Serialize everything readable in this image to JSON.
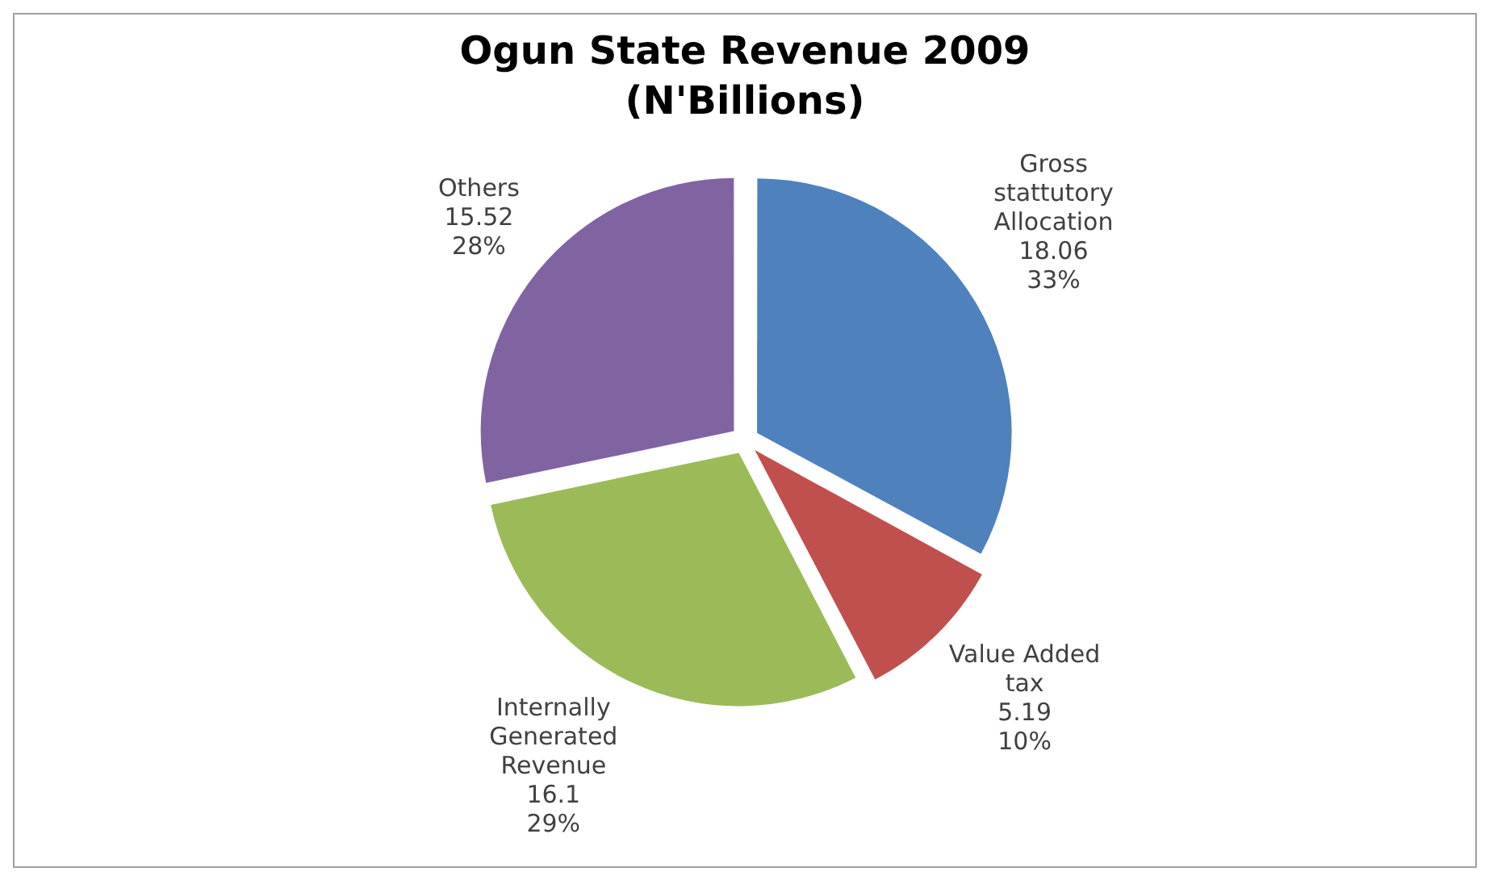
{
  "chart_data": {
    "type": "pie",
    "title": "Ogun State Revenue 2009",
    "subtitle": "(N'Billions)",
    "categories": [
      "Gross stattutory Allocation",
      "Value Added tax",
      "Internally Generated Revenue",
      "Others"
    ],
    "values": [
      18.06,
      5.19,
      16.1,
      15.52
    ],
    "colors": [
      "#4f81bd",
      "#c0504d",
      "#9bbb59",
      "#8064a2"
    ],
    "value_labels": [
      "18.06 33%",
      "5.19 10%",
      "16.1 29%",
      "15.52 28%"
    ],
    "legend": false
  }
}
